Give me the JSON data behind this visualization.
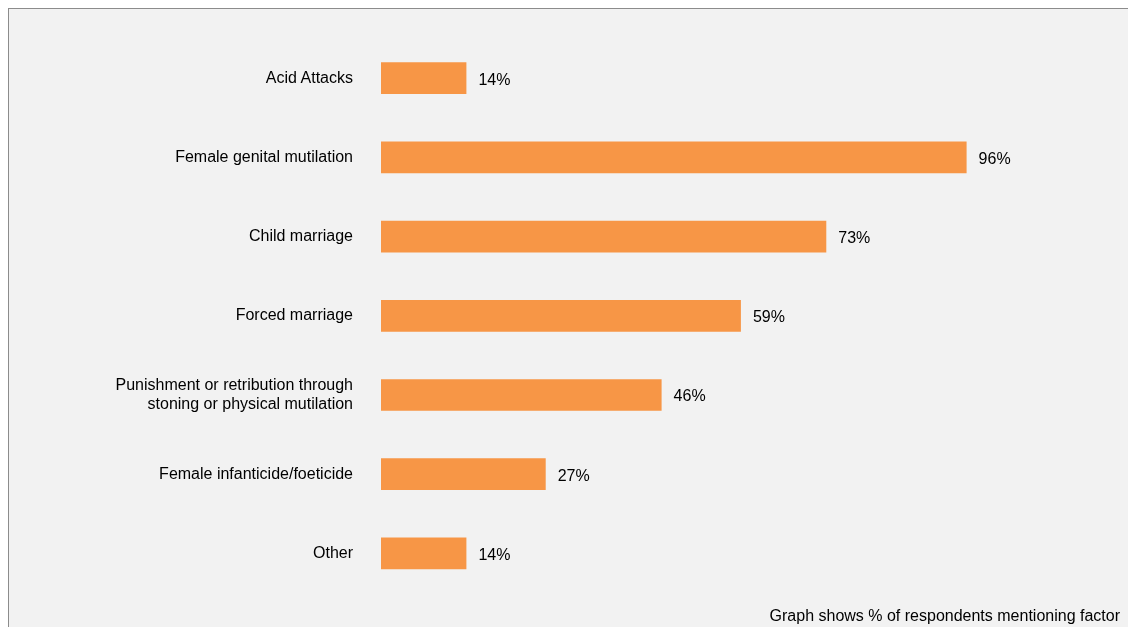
{
  "chart_data": {
    "type": "bar",
    "orientation": "horizontal",
    "categories": [
      "Acid Attacks",
      "Female genital mutilation",
      "Child marriage",
      "Forced marriage",
      "Punishment or retribution through stoning or physical mutilation",
      "Female infanticide/foeticide",
      "Other"
    ],
    "values": [
      14,
      96,
      73,
      59,
      46,
      27,
      14
    ],
    "value_labels": [
      "14%",
      "96%",
      "73%",
      "59%",
      "46%",
      "27%",
      "14%"
    ],
    "color": "#f79646",
    "tick_labels": "y",
    "legend": false,
    "annotations": [
      "Graph shows % of respondents mentioning factor"
    ]
  }
}
